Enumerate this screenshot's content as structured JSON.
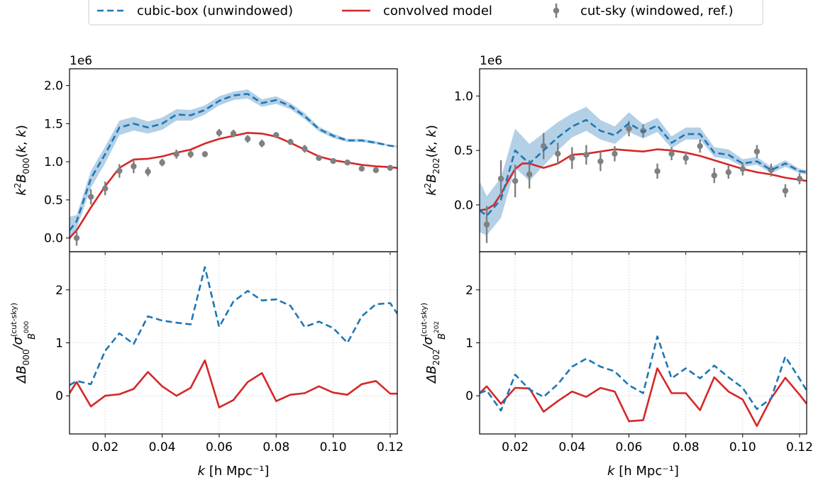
{
  "legend": {
    "entries": [
      {
        "label": "cubic-box (unwindowed)",
        "style": "dashed",
        "color": "#1f77b4"
      },
      {
        "label": "convolved model",
        "style": "solid",
        "color": "#d62728"
      },
      {
        "label": "cut-sky (windowed, ref.)",
        "style": "errorbar",
        "color": "#808080"
      }
    ],
    "placement": "top-center"
  },
  "colors": {
    "cubic": "#1f77b4",
    "band": "#a6c8e3",
    "model": "#d62728",
    "ref": "#808080",
    "grid": "#c8c8c8"
  },
  "xaxis": {
    "label_k": "k",
    "label_unit": "[h Mpc⁻¹]",
    "ticks": [
      0.02,
      0.04,
      0.06,
      0.08,
      0.1,
      0.12
    ],
    "tick_labels": [
      "0.02",
      "0.04",
      "0.06",
      "0.08",
      "0.10",
      "0.12"
    ],
    "xlim": [
      0.0075,
      0.1225
    ]
  },
  "chart_data": [
    {
      "type": "line",
      "panel": "top-left",
      "ylabel": "k²B₀₀₀(k,k)",
      "offset_text": "1e6",
      "ylim": [
        -0.18,
        2.22
      ],
      "yticks": [
        0.0,
        0.5,
        1.0,
        1.5,
        2.0
      ],
      "ytick_labels": [
        "0.0",
        "0.5",
        "1.0",
        "1.5",
        "2.0"
      ],
      "grid": false,
      "series": [
        {
          "role": "cubic",
          "x": [
            0.0075,
            0.01,
            0.015,
            0.02,
            0.025,
            0.03,
            0.035,
            0.04,
            0.045,
            0.05,
            0.055,
            0.06,
            0.065,
            0.07,
            0.075,
            0.08,
            0.085,
            0.09,
            0.095,
            0.1,
            0.105,
            0.11,
            0.115,
            0.12,
            0.1225
          ],
          "y": [
            0.1,
            0.22,
            0.78,
            1.1,
            1.45,
            1.5,
            1.45,
            1.5,
            1.62,
            1.61,
            1.68,
            1.8,
            1.87,
            1.89,
            1.77,
            1.81,
            1.73,
            1.6,
            1.43,
            1.34,
            1.28,
            1.28,
            1.25,
            1.21,
            1.2
          ]
        },
        {
          "role": "band_upper",
          "x": [
            0.0075,
            0.01,
            0.015,
            0.02,
            0.025,
            0.03,
            0.035,
            0.04,
            0.045,
            0.05,
            0.055,
            0.06,
            0.065,
            0.07,
            0.075,
            0.08,
            0.085,
            0.09,
            0.095,
            0.1,
            0.105,
            0.11,
            0.115,
            0.12,
            0.1225
          ],
          "y": [
            0.28,
            0.3,
            0.88,
            1.2,
            1.54,
            1.59,
            1.53,
            1.58,
            1.69,
            1.68,
            1.74,
            1.86,
            1.92,
            1.95,
            1.82,
            1.86,
            1.77,
            1.64,
            1.46,
            1.37,
            1.3,
            1.3,
            1.27,
            1.22,
            1.21
          ]
        },
        {
          "role": "band_lower",
          "x": [
            0.0075,
            0.01,
            0.015,
            0.02,
            0.025,
            0.03,
            0.035,
            0.04,
            0.045,
            0.05,
            0.055,
            0.06,
            0.065,
            0.07,
            0.075,
            0.08,
            0.085,
            0.09,
            0.095,
            0.1,
            0.105,
            0.11,
            0.115,
            0.12,
            0.1225
          ],
          "y": [
            -0.04,
            0.12,
            0.66,
            0.98,
            1.35,
            1.41,
            1.37,
            1.42,
            1.54,
            1.54,
            1.62,
            1.74,
            1.81,
            1.83,
            1.72,
            1.76,
            1.69,
            1.56,
            1.4,
            1.31,
            1.26,
            1.26,
            1.23,
            1.2,
            1.19
          ]
        },
        {
          "role": "model",
          "x": [
            0.0075,
            0.01,
            0.015,
            0.02,
            0.025,
            0.03,
            0.035,
            0.04,
            0.045,
            0.05,
            0.055,
            0.06,
            0.065,
            0.07,
            0.075,
            0.08,
            0.085,
            0.09,
            0.095,
            0.1,
            0.105,
            0.11,
            0.115,
            0.12,
            0.1225
          ],
          "y": [
            0.0,
            0.1,
            0.4,
            0.68,
            0.92,
            1.03,
            1.04,
            1.07,
            1.12,
            1.16,
            1.24,
            1.3,
            1.34,
            1.38,
            1.37,
            1.33,
            1.25,
            1.16,
            1.07,
            1.02,
            0.99,
            0.96,
            0.94,
            0.93,
            0.92
          ]
        },
        {
          "role": "ref",
          "x": [
            0.01,
            0.015,
            0.02,
            0.025,
            0.03,
            0.035,
            0.04,
            0.045,
            0.05,
            0.055,
            0.06,
            0.065,
            0.07,
            0.075,
            0.08,
            0.085,
            0.09,
            0.095,
            0.1,
            0.105,
            0.11,
            0.115,
            0.12
          ],
          "y": [
            0.0,
            0.54,
            0.65,
            0.88,
            0.94,
            0.87,
            0.99,
            1.1,
            1.1,
            1.1,
            1.38,
            1.37,
            1.3,
            1.24,
            1.35,
            1.26,
            1.17,
            1.05,
            1.01,
            0.99,
            0.91,
            0.89,
            0.92
          ],
          "err": [
            0.1,
            0.1,
            0.09,
            0.09,
            0.09,
            0.06,
            0.05,
            0.06,
            0.05,
            0.04,
            0.05,
            0.05,
            0.05,
            0.05,
            0.04,
            0.04,
            0.05,
            0.03,
            0.03,
            0.03,
            0.03,
            0.02,
            0.02
          ]
        }
      ]
    },
    {
      "type": "line",
      "panel": "top-right",
      "ylabel": "k²B₂₀₂(k,k)",
      "offset_text": "1e6",
      "ylim": [
        -0.43,
        1.25
      ],
      "yticks": [
        0.0,
        0.5,
        1.0
      ],
      "ytick_labels": [
        "0.0",
        "0.5",
        "1.0"
      ],
      "grid": false,
      "series": [
        {
          "role": "cubic",
          "x": [
            0.0075,
            0.01,
            0.015,
            0.02,
            0.025,
            0.03,
            0.035,
            0.04,
            0.045,
            0.05,
            0.055,
            0.06,
            0.065,
            0.07,
            0.075,
            0.08,
            0.085,
            0.09,
            0.095,
            0.1,
            0.105,
            0.11,
            0.115,
            0.12,
            0.1225
          ],
          "y": [
            -0.05,
            -0.1,
            0.05,
            0.5,
            0.38,
            0.5,
            0.62,
            0.72,
            0.78,
            0.68,
            0.64,
            0.75,
            0.67,
            0.73,
            0.57,
            0.65,
            0.65,
            0.48,
            0.46,
            0.38,
            0.4,
            0.32,
            0.38,
            0.31,
            0.3
          ]
        },
        {
          "role": "band_upper",
          "x": [
            0.0075,
            0.01,
            0.015,
            0.02,
            0.025,
            0.03,
            0.035,
            0.04,
            0.045,
            0.05,
            0.055,
            0.06,
            0.065,
            0.07,
            0.075,
            0.08,
            0.085,
            0.09,
            0.095,
            0.1,
            0.105,
            0.11,
            0.115,
            0.12,
            0.1225
          ],
          "y": [
            0.22,
            0.08,
            0.25,
            0.7,
            0.56,
            0.66,
            0.76,
            0.84,
            0.9,
            0.78,
            0.72,
            0.85,
            0.74,
            0.8,
            0.63,
            0.71,
            0.71,
            0.53,
            0.51,
            0.42,
            0.44,
            0.35,
            0.41,
            0.33,
            0.32
          ]
        },
        {
          "role": "band_lower",
          "x": [
            0.0075,
            0.01,
            0.015,
            0.02,
            0.025,
            0.03,
            0.035,
            0.04,
            0.045,
            0.05,
            0.055,
            0.06,
            0.065,
            0.07,
            0.075,
            0.08,
            0.085,
            0.09,
            0.095,
            0.1,
            0.105,
            0.11,
            0.115,
            0.12,
            0.1225
          ],
          "y": [
            -0.25,
            -0.28,
            -0.12,
            0.34,
            0.22,
            0.36,
            0.5,
            0.62,
            0.68,
            0.6,
            0.56,
            0.67,
            0.61,
            0.67,
            0.52,
            0.6,
            0.6,
            0.44,
            0.42,
            0.35,
            0.37,
            0.29,
            0.35,
            0.29,
            0.28
          ]
        },
        {
          "role": "model",
          "x": [
            0.0075,
            0.01,
            0.0125,
            0.015,
            0.0175,
            0.02,
            0.0225,
            0.025,
            0.0275,
            0.03,
            0.035,
            0.04,
            0.045,
            0.05,
            0.055,
            0.06,
            0.065,
            0.07,
            0.075,
            0.08,
            0.085,
            0.09,
            0.095,
            0.1,
            0.105,
            0.11,
            0.115,
            0.12,
            0.1225
          ],
          "y": [
            -0.05,
            -0.04,
            0.0,
            0.1,
            0.22,
            0.33,
            0.38,
            0.38,
            0.36,
            0.34,
            0.38,
            0.46,
            0.47,
            0.49,
            0.51,
            0.5,
            0.49,
            0.51,
            0.5,
            0.48,
            0.45,
            0.41,
            0.37,
            0.33,
            0.3,
            0.28,
            0.25,
            0.23,
            0.22
          ]
        },
        {
          "role": "ref",
          "x": [
            0.01,
            0.015,
            0.02,
            0.025,
            0.03,
            0.035,
            0.04,
            0.045,
            0.05,
            0.055,
            0.06,
            0.065,
            0.07,
            0.075,
            0.08,
            0.085,
            0.09,
            0.095,
            0.1,
            0.105,
            0.11,
            0.115,
            0.12
          ],
          "y": [
            -0.18,
            0.24,
            0.22,
            0.28,
            0.54,
            0.47,
            0.43,
            0.46,
            0.4,
            0.47,
            0.7,
            0.68,
            0.31,
            0.47,
            0.43,
            0.54,
            0.27,
            0.3,
            0.33,
            0.49,
            0.32,
            0.13,
            0.24
          ]
        },
        {
          "role": "ref_err",
          "err": [
            0.17,
            0.17,
            0.15,
            0.13,
            0.12,
            0.1,
            0.1,
            0.09,
            0.09,
            0.07,
            0.07,
            0.06,
            0.07,
            0.06,
            0.06,
            0.06,
            0.07,
            0.06,
            0.06,
            0.06,
            0.06,
            0.06,
            0.05
          ]
        }
      ]
    },
    {
      "type": "line",
      "panel": "bottom-left",
      "ylabel": "ΔB₀₀₀/σ_B₀₀₀^(cut-sky)",
      "ylim": [
        -0.72,
        2.72
      ],
      "yticks": [
        0,
        1,
        2
      ],
      "ytick_labels": [
        "0",
        "1",
        "2"
      ],
      "grid": true,
      "series": [
        {
          "role": "cubic",
          "x": [
            0.0075,
            0.01,
            0.015,
            0.02,
            0.025,
            0.03,
            0.035,
            0.04,
            0.045,
            0.05,
            0.055,
            0.06,
            0.065,
            0.07,
            0.075,
            0.08,
            0.085,
            0.09,
            0.095,
            0.1,
            0.105,
            0.11,
            0.115,
            0.12,
            0.1225
          ],
          "y": [
            0.2,
            0.28,
            0.22,
            0.85,
            1.18,
            0.98,
            1.5,
            1.42,
            1.38,
            1.35,
            2.43,
            1.3,
            1.78,
            1.98,
            1.8,
            1.82,
            1.7,
            1.3,
            1.4,
            1.28,
            1.0,
            1.5,
            1.73,
            1.75,
            1.55
          ]
        },
        {
          "role": "model",
          "x": [
            0.0075,
            0.01,
            0.015,
            0.02,
            0.025,
            0.03,
            0.035,
            0.04,
            0.045,
            0.05,
            0.055,
            0.06,
            0.065,
            0.07,
            0.075,
            0.08,
            0.085,
            0.09,
            0.095,
            0.1,
            0.105,
            0.11,
            0.115,
            0.12,
            0.1225
          ],
          "y": [
            0.05,
            0.26,
            -0.2,
            0.0,
            0.03,
            0.13,
            0.45,
            0.18,
            0.0,
            0.15,
            0.67,
            -0.22,
            -0.08,
            0.26,
            0.43,
            -0.1,
            0.02,
            0.05,
            0.18,
            0.06,
            0.02,
            0.22,
            0.28,
            0.04,
            0.04
          ]
        }
      ]
    },
    {
      "type": "line",
      "panel": "bottom-right",
      "ylabel": "ΔB₂₀₂/σ_B₂₀₂^(cut-sky)",
      "ylim": [
        -0.72,
        2.72
      ],
      "yticks": [
        0,
        1,
        2
      ],
      "ytick_labels": [
        "0",
        "1",
        "2"
      ],
      "grid": true,
      "series": [
        {
          "role": "cubic",
          "x": [
            0.0075,
            0.01,
            0.015,
            0.02,
            0.025,
            0.03,
            0.035,
            0.04,
            0.045,
            0.05,
            0.055,
            0.06,
            0.065,
            0.07,
            0.075,
            0.08,
            0.085,
            0.09,
            0.095,
            0.1,
            0.105,
            0.11,
            0.115,
            0.12,
            0.1225
          ],
          "y": [
            0.05,
            0.1,
            -0.28,
            0.4,
            0.12,
            -0.02,
            0.22,
            0.55,
            0.7,
            0.55,
            0.46,
            0.2,
            0.05,
            1.12,
            0.33,
            0.52,
            0.33,
            0.57,
            0.35,
            0.15,
            -0.25,
            -0.05,
            0.74,
            0.32,
            0.1
          ]
        },
        {
          "role": "model",
          "x": [
            0.0075,
            0.01,
            0.015,
            0.02,
            0.025,
            0.03,
            0.035,
            0.04,
            0.045,
            0.05,
            0.055,
            0.06,
            0.065,
            0.07,
            0.075,
            0.08,
            0.085,
            0.09,
            0.095,
            0.1,
            0.105,
            0.11,
            0.115,
            0.12,
            0.1225
          ],
          "y": [
            0.05,
            0.18,
            -0.15,
            0.15,
            0.14,
            -0.3,
            -0.1,
            0.08,
            -0.02,
            0.15,
            0.08,
            -0.48,
            -0.46,
            0.52,
            0.05,
            0.05,
            -0.27,
            0.35,
            0.08,
            -0.07,
            -0.57,
            -0.05,
            0.34,
            0.02,
            -0.15
          ]
        }
      ]
    }
  ]
}
